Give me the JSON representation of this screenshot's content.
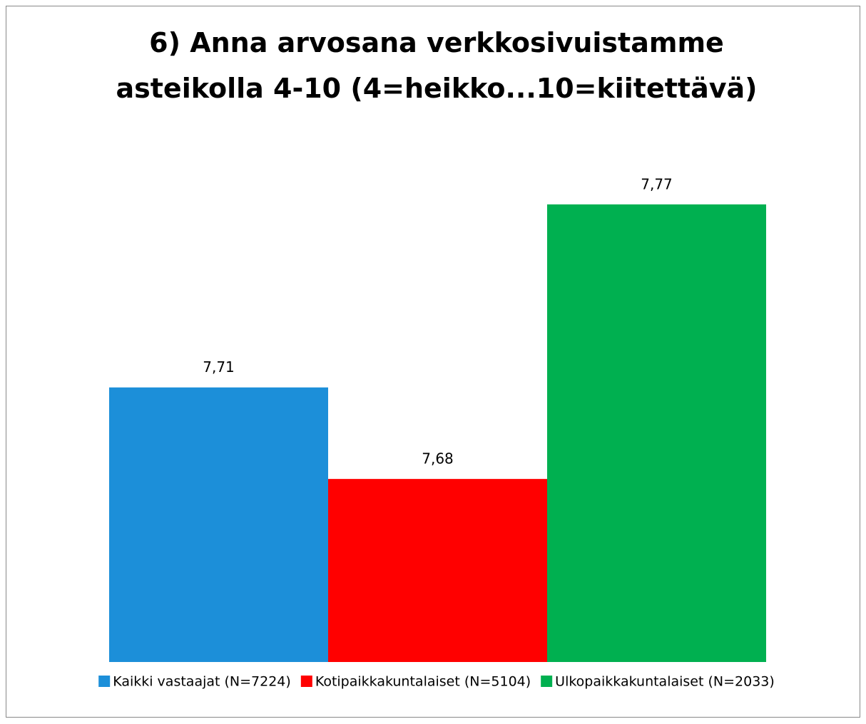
{
  "chart_data": {
    "type": "bar",
    "title": "6) Anna arvosana verkkosivuistamme asteikolla 4-10 (4=heikko...10=kiitettävä)",
    "categories": [
      null
    ],
    "series": [
      {
        "name": "Kaikki vastaajat (N=7224)",
        "color": "#1c8fd9",
        "values": [
          7.71
        ],
        "value_labels": [
          "7,71"
        ]
      },
      {
        "name": "Kotipaikkakuntalaiset (N=5104)",
        "color": "#ff0000",
        "values": [
          7.68
        ],
        "value_labels": [
          "7,68"
        ]
      },
      {
        "name": "Ulkopaikkakuntalaiset (N=2033)",
        "color": "#00b050",
        "values": [
          7.77
        ],
        "value_labels": [
          "7,77"
        ]
      }
    ],
    "ylim": [
      7.62,
      7.78
    ],
    "legend": "bottom"
  }
}
